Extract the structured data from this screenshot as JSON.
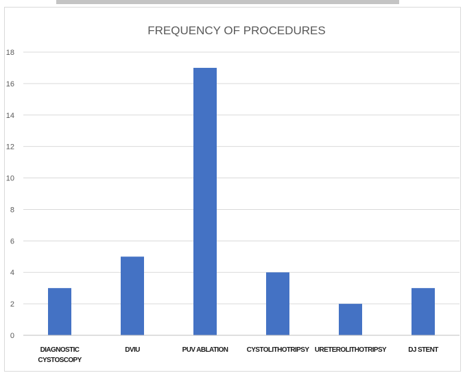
{
  "chart_data": {
    "type": "bar",
    "title": "FREQUENCY OF PROCEDURES",
    "categories": [
      [
        "DIAGNOSTIC",
        "CYSTOSCOPY"
      ],
      [
        "DVIU"
      ],
      [
        "PUV ABLATION"
      ],
      [
        "CYSTOLITHOTRIPSY"
      ],
      [
        "URETEROLITHOTRIPSY"
      ],
      [
        "DJ STENT"
      ]
    ],
    "values": [
      3,
      5,
      17,
      4,
      2,
      3
    ],
    "ylim": [
      0,
      18
    ],
    "yticks": [
      0,
      2,
      4,
      6,
      8,
      10,
      12,
      14,
      16,
      18
    ],
    "xlabel": "",
    "ylabel": "",
    "grid": true,
    "legend": "none",
    "bar_color": "#4472c4"
  }
}
